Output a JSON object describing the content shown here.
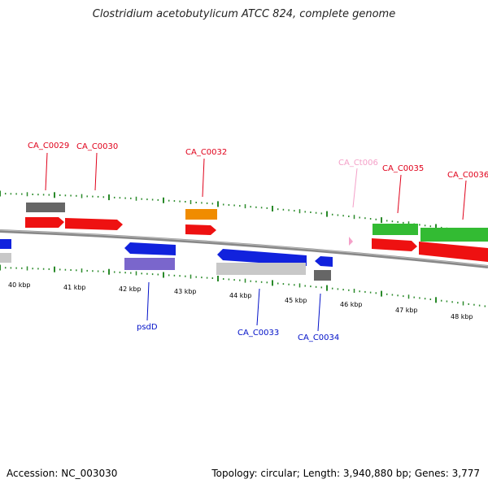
{
  "title": "Clostridium acetobutylicum ATCC 824, complete genome",
  "footer": {
    "accession": "Accession: NC_003030",
    "summary": "Topology: circular; Length: 3,940,880 bp; Genes: 3,777"
  },
  "axis_labels": [
    "40 kbp",
    "41 kbp",
    "42 kbp",
    "43 kbp",
    "44 kbp",
    "45 kbp",
    "46 kbp",
    "47 kbp",
    "48 kbp"
  ],
  "forward_labels": [
    {
      "text": "CA_C0029",
      "color": "#e0001a"
    },
    {
      "text": "CA_C0030",
      "color": "#e0001a"
    },
    {
      "text": "CA_C0032",
      "color": "#e0001a"
    },
    {
      "text": "CA_Ct006",
      "color": "#f4a0c8"
    },
    {
      "text": "CA_C0035",
      "color": "#e0001a"
    },
    {
      "text": "CA_C0036",
      "color": "#e0001a"
    }
  ],
  "reverse_labels": [
    {
      "text": "psdD",
      "color": "#0010c8"
    },
    {
      "text": "CA_C0033",
      "color": "#0010c8"
    },
    {
      "text": "CA_C0034",
      "color": "#0010c8"
    }
  ],
  "colors": {
    "cds_forward": "#ee1111",
    "cds_reverse": "#1122dd",
    "gene_grey": "#6a6a6a",
    "gene_light": "#c8c8c8",
    "gene_orange": "#f08c00",
    "gene_green": "#33bb33",
    "gene_purple": "#7a66cc",
    "trna": "#f4a0c8",
    "backbone": "#777777",
    "ticks": "#2a8a2a"
  }
}
